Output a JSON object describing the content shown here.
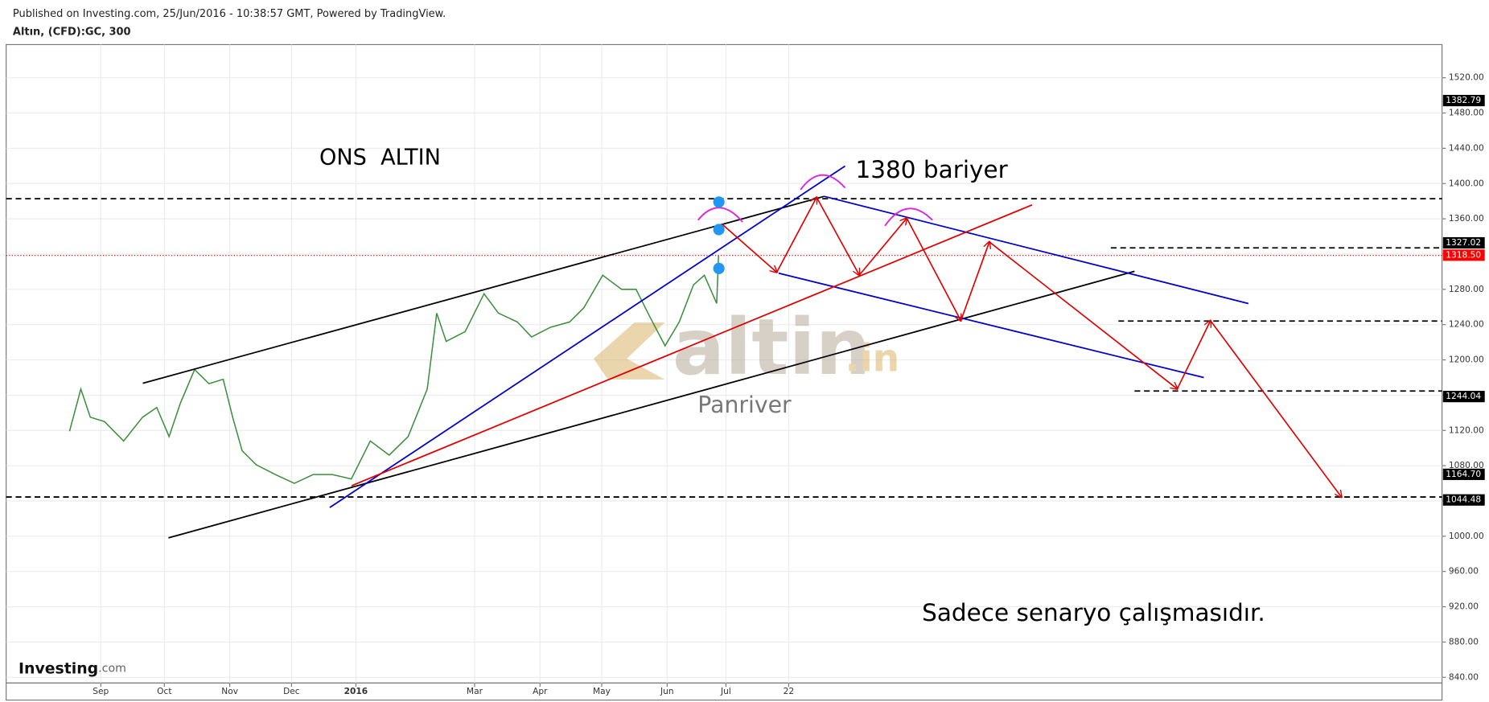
{
  "chart_data": {
    "type": "line",
    "subtitle": "Published on Investing.com, 25/Jun/2016 - 10:38:57 GMT, Powered by TradingView.",
    "title": "Altın, (CFD):GC, 300",
    "annotations": [
      "ONS  ALTIN",
      "1380 bariyer",
      "Sadece senaryo çalışmasıdır."
    ],
    "watermark": [
      "altin",
      ".in",
      "Panriver"
    ],
    "logo": [
      "Investing",
      ".com"
    ],
    "x": [
      30.8,
      36.3,
      40.9,
      47.8,
      57.1,
      66.3,
      73.2,
      79.2,
      84.7,
      91.6,
      98.6,
      105.5,
      110.1,
      114.7,
      121.6,
      130.8,
      140.1,
      149.3,
      158.5,
      167.8,
      177,
      186.2,
      195.4,
      204.7,
      209.3,
      213.9,
      223.1,
      232.3,
      239.3,
      248.5,
      255.4,
      264.6,
      273.9,
      280.8,
      290,
      299.2,
      306.2,
      313.1,
      320.3,
      327.2,
      334.1,
      339.4,
      345.4,
      346.3
    ],
    "series": [
      {
        "color": "#3c8f3c",
        "values": [
          1119,
          1167,
          1135,
          1130,
          1108,
          1135,
          1146,
          1113,
          1151,
          1189,
          1173,
          1178,
          1135,
          1097,
          1081,
          1070,
          1060,
          1070,
          1070,
          1065,
          1108,
          1092,
          1113,
          1167,
          1253,
          1221,
          1232,
          1275,
          1253,
          1243,
          1226,
          1237,
          1243,
          1259,
          1296,
          1280,
          1280,
          1248,
          1216,
          1243,
          1285,
          1296,
          1264,
          1318.5
        ]
      }
    ],
    "xlim": [
      0,
      698
    ],
    "xticks": [
      {
        "value": 46,
        "label": "Sep"
      },
      {
        "value": 76.9,
        "label": "Oct"
      },
      {
        "value": 108.7,
        "label": "Nov"
      },
      {
        "value": 138.7,
        "label": "Dec"
      },
      {
        "value": 170,
        "label": "2016"
      },
      {
        "value": 227.7,
        "label": "Mar"
      },
      {
        "value": 259.5,
        "label": "Apr"
      },
      {
        "value": 289.5,
        "label": "May"
      },
      {
        "value": 321.3,
        "label": "Jun"
      },
      {
        "value": 349.9,
        "label": "Jul"
      },
      {
        "value": 380.4,
        "label": "22"
      }
    ],
    "ylim": [
      833.5,
      1557.6
    ],
    "yticks": [
      {
        "value": 840,
        "label": "840.00"
      },
      {
        "value": 880,
        "label": "880.00"
      },
      {
        "value": 920,
        "label": "920.00"
      },
      {
        "value": 960,
        "label": "960.00"
      },
      {
        "value": 1000,
        "label": "1000.00"
      },
      {
        "value": 1040,
        "label": "1040.00"
      },
      {
        "value": 1080,
        "label": "1080.00"
      },
      {
        "value": 1120,
        "label": "1120.00"
      },
      {
        "value": 1160,
        "label": "1160.00"
      },
      {
        "value": 1200,
        "label": "1200.00"
      },
      {
        "value": 1240,
        "label": "1240.00"
      },
      {
        "value": 1280,
        "label": "1280.00"
      },
      {
        "value": 1320,
        "label": "1320.00"
      },
      {
        "value": 1360,
        "label": "1360.00"
      },
      {
        "value": 1400,
        "label": "1400.00"
      },
      {
        "value": 1440,
        "label": "1440.00"
      },
      {
        "value": 1480,
        "label": "1480.00"
      },
      {
        "value": 1520,
        "label": "1520.00"
      }
    ],
    "grid": true,
    "price_levels": [
      1382.79,
      1327.02,
      1244.04,
      {
        "value": 1164.7,
        "label": "1164.70"
      },
      1044.48
    ],
    "last_price": {
      "value": 1318.5,
      "label": "1318.50"
    },
    "last_price_color": "#ff0000"
  }
}
